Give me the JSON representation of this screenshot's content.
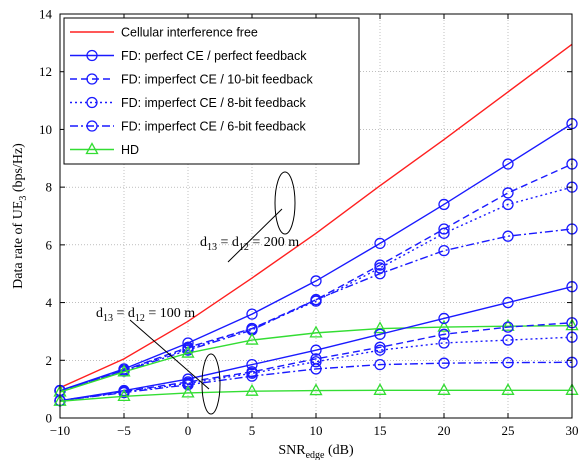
{
  "chart_data": {
    "type": "line",
    "xlabel": "SNR",
    "xlabel_sub": "edge",
    "xlabel_unit": " (dB)",
    "ylabel": "Data rate of UE",
    "ylabel_sub": "3",
    "ylabel_unit": " (bps/Hz)",
    "xlim": [
      -10,
      30
    ],
    "ylim": [
      0,
      14
    ],
    "xticks": [
      -10,
      -5,
      0,
      5,
      10,
      15,
      20,
      25,
      30
    ],
    "yticks": [
      0,
      2,
      4,
      6,
      8,
      10,
      12,
      14
    ],
    "grid": true,
    "legend_position": "top-left",
    "legend": [
      {
        "label": "Cellular interference free",
        "color": "#ff2020",
        "dash": "solid",
        "marker": "none"
      },
      {
        "label": "FD: perfect CE / perfect feedback",
        "color": "#1a1aff",
        "dash": "solid",
        "marker": "circle"
      },
      {
        "label": "FD: imperfect CE / 10-bit feedback",
        "color": "#1a1aff",
        "dash": "dashed",
        "marker": "circle"
      },
      {
        "label": "FD: imperfect CE /  8-bit feedback",
        "color": "#1a1aff",
        "dash": "dotted",
        "marker": "circle"
      },
      {
        "label": "FD: imperfect CE /  6-bit feedback",
        "color": "#1a1aff",
        "dash": "dashdot",
        "marker": "circle"
      },
      {
        "label": "HD",
        "color": "#33dd33",
        "dash": "solid",
        "marker": "triangle"
      }
    ],
    "series": [
      {
        "group": "d13 = d12 = 200 m",
        "style": 0,
        "x": [
          -10,
          -5,
          0,
          5,
          10,
          15,
          20,
          25,
          30
        ],
        "y": [
          1.05,
          2.05,
          3.35,
          4.85,
          6.4,
          8.05,
          9.65,
          11.3,
          12.95
        ]
      },
      {
        "group": "d13 = d12 = 200 m",
        "style": 1,
        "x": [
          -10,
          -5,
          0,
          5,
          10,
          15,
          20,
          25,
          30
        ],
        "y": [
          0.95,
          1.7,
          2.6,
          3.6,
          4.75,
          6.05,
          7.4,
          8.8,
          10.2
        ]
      },
      {
        "group": "d13 = d12 = 200 m",
        "style": 2,
        "x": [
          -10,
          -5,
          0,
          5,
          10,
          15,
          20,
          25,
          30
        ],
        "y": [
          0.95,
          1.65,
          2.45,
          3.1,
          4.1,
          5.3,
          6.55,
          7.8,
          8.8
        ]
      },
      {
        "group": "d13 = d12 = 200 m",
        "style": 3,
        "x": [
          -10,
          -5,
          0,
          5,
          10,
          15,
          20,
          25,
          30
        ],
        "y": [
          0.95,
          1.65,
          2.4,
          3.1,
          4.05,
          5.2,
          6.4,
          7.4,
          8.0
        ]
      },
      {
        "group": "d13 = d12 = 200 m",
        "style": 4,
        "x": [
          -10,
          -5,
          0,
          5,
          10,
          15,
          20,
          25,
          30
        ],
        "y": [
          0.95,
          1.62,
          2.35,
          3.05,
          4.1,
          5.0,
          5.8,
          6.3,
          6.55
        ]
      },
      {
        "group": "d13 = d12 = 200 m",
        "style": 5,
        "x": [
          -10,
          -5,
          0,
          5,
          10,
          15,
          20,
          25,
          30
        ],
        "y": [
          0.9,
          1.6,
          2.25,
          2.7,
          2.95,
          3.1,
          3.15,
          3.18,
          3.2
        ]
      },
      {
        "group": "d13 = d12 = 100 m",
        "style": 1,
        "x": [
          -10,
          -5,
          0,
          5,
          10,
          15,
          20,
          25,
          30
        ],
        "y": [
          0.6,
          0.95,
          1.35,
          1.85,
          2.35,
          2.9,
          3.45,
          4.0,
          4.55
        ]
      },
      {
        "group": "d13 = d12 = 100 m",
        "style": 2,
        "x": [
          -10,
          -5,
          0,
          5,
          10,
          15,
          20,
          25,
          30
        ],
        "y": [
          0.6,
          0.92,
          1.25,
          1.6,
          2.05,
          2.45,
          2.9,
          3.15,
          3.3
        ]
      },
      {
        "group": "d13 = d12 = 100 m",
        "style": 3,
        "x": [
          -10,
          -5,
          0,
          5,
          10,
          15,
          20,
          25,
          30
        ],
        "y": [
          0.6,
          0.9,
          1.2,
          1.55,
          1.95,
          2.35,
          2.6,
          2.7,
          2.8
        ]
      },
      {
        "group": "d13 = d12 = 100 m",
        "style": 4,
        "x": [
          -10,
          -5,
          0,
          5,
          10,
          15,
          20,
          25,
          30
        ],
        "y": [
          0.6,
          0.88,
          1.15,
          1.45,
          1.7,
          1.85,
          1.9,
          1.92,
          1.93
        ]
      },
      {
        "group": "d13 = d12 = 100 m",
        "style": 5,
        "x": [
          -10,
          -5,
          0,
          5,
          10,
          15,
          20,
          25,
          30
        ],
        "y": [
          0.58,
          0.75,
          0.87,
          0.93,
          0.95,
          0.96,
          0.96,
          0.96,
          0.96
        ]
      }
    ],
    "annotations": [
      {
        "text_d": "d",
        "text_sub1": "13",
        "text_mid": " = d",
        "text_sub2": "12",
        "text_end": " = 200 m",
        "at_x": 6.7,
        "at_y": 3.5
      },
      {
        "text_d": "d",
        "text_sub1": "13",
        "text_mid": " = d",
        "text_sub2": "12",
        "text_end": " = 100 m",
        "at_x": 1.8,
        "at_y": 1.2
      }
    ]
  }
}
